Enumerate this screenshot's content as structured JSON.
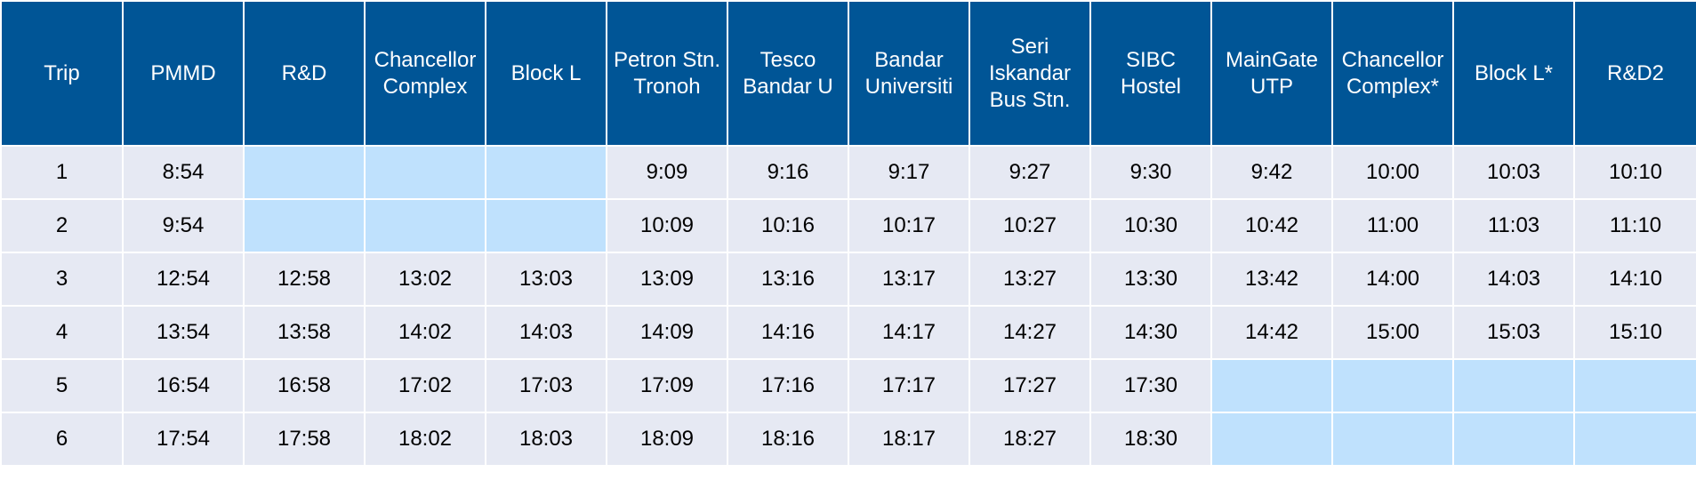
{
  "colors": {
    "header_bg": "#005596",
    "header_text": "#ffffff",
    "cell_bg": "#e6e9f3",
    "empty_cell_bg": "#bfe1fd"
  },
  "headers": [
    [
      "Trip"
    ],
    [
      "PMMD"
    ],
    [
      "R&D"
    ],
    [
      "Chancellor",
      "Complex"
    ],
    [
      "Block L"
    ],
    [
      "Petron Stn.",
      "Tronoh"
    ],
    [
      "Tesco",
      "Bandar U"
    ],
    [
      "Bandar",
      "Universiti"
    ],
    [
      "Seri",
      "Iskandar",
      "Bus Stn."
    ],
    [
      "SIBC",
      "Hostel"
    ],
    [
      "MainGate",
      "UTP"
    ],
    [
      "Chancellor",
      "Complex*"
    ],
    [
      "Block L*"
    ],
    [
      "R&D2"
    ]
  ],
  "rows": [
    [
      "1",
      "8:54",
      "",
      "",
      "",
      "9:09",
      "9:16",
      "9:17",
      "9:27",
      "9:30",
      "9:42",
      "10:00",
      "10:03",
      "10:10"
    ],
    [
      "2",
      "9:54",
      "",
      "",
      "",
      "10:09",
      "10:16",
      "10:17",
      "10:27",
      "10:30",
      "10:42",
      "11:00",
      "11:03",
      "11:10"
    ],
    [
      "3",
      "12:54",
      "12:58",
      "13:02",
      "13:03",
      "13:09",
      "13:16",
      "13:17",
      "13:27",
      "13:30",
      "13:42",
      "14:00",
      "14:03",
      "14:10"
    ],
    [
      "4",
      "13:54",
      "13:58",
      "14:02",
      "14:03",
      "14:09",
      "14:16",
      "14:17",
      "14:27",
      "14:30",
      "14:42",
      "15:00",
      "15:03",
      "15:10"
    ],
    [
      "5",
      "16:54",
      "16:58",
      "17:02",
      "17:03",
      "17:09",
      "17:16",
      "17:17",
      "17:27",
      "17:30",
      "",
      "",
      "",
      ""
    ],
    [
      "6",
      "17:54",
      "17:58",
      "18:02",
      "18:03",
      "18:09",
      "18:16",
      "18:17",
      "18:27",
      "18:30",
      "",
      "",
      "",
      ""
    ]
  ]
}
